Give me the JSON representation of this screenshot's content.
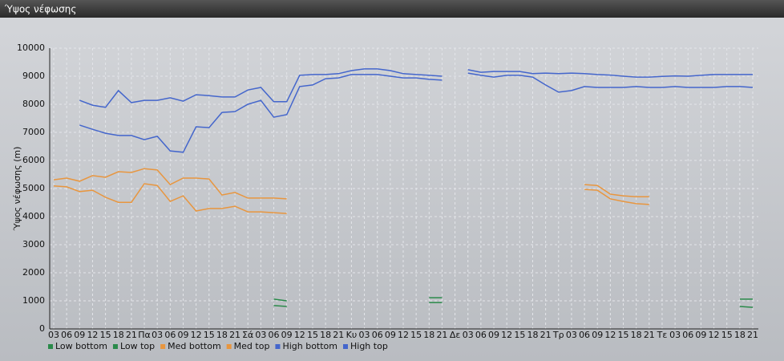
{
  "chart_data": {
    "type": "line",
    "title": "Ύψος νέφωσης",
    "y_label": "Ύψος νέφωσης (m)",
    "categories": [
      "03",
      "06",
      "09",
      "12",
      "15",
      "18",
      "21",
      "Πα",
      "03",
      "06",
      "09",
      "12",
      "15",
      "18",
      "21",
      "Σά",
      "03",
      "06",
      "09",
      "12",
      "15",
      "18",
      "21",
      "Κυ",
      "03",
      "06",
      "09",
      "12",
      "15",
      "18",
      "21",
      "Δε",
      "03",
      "06",
      "09",
      "12",
      "15",
      "18",
      "21",
      "Τρ",
      "03",
      "06",
      "09",
      "12",
      "15",
      "18",
      "21",
      "Τε",
      "03",
      "06",
      "09",
      "12",
      "15",
      "18",
      "21"
    ],
    "ylim": [
      0,
      10000
    ],
    "yticks": [
      0,
      1000,
      2000,
      3000,
      4000,
      5000,
      6000,
      7000,
      8000,
      9000,
      10000
    ],
    "grid": true,
    "series": [
      {
        "name": "Low bottom",
        "color": "#2a8a4a",
        "values": [
          null,
          null,
          null,
          null,
          null,
          null,
          null,
          null,
          null,
          null,
          null,
          null,
          null,
          null,
          null,
          null,
          null,
          830,
          800,
          null,
          null,
          null,
          null,
          null,
          null,
          null,
          null,
          null,
          null,
          940,
          940,
          null,
          null,
          null,
          null,
          null,
          null,
          null,
          null,
          null,
          null,
          null,
          null,
          null,
          null,
          null,
          null,
          null,
          null,
          null,
          null,
          null,
          null,
          800,
          770
        ]
      },
      {
        "name": "Low top",
        "color": "#2a8a4a",
        "values": [
          null,
          null,
          null,
          null,
          null,
          null,
          null,
          null,
          null,
          null,
          null,
          null,
          null,
          null,
          null,
          null,
          null,
          1060,
          1000,
          null,
          null,
          null,
          null,
          null,
          null,
          null,
          null,
          null,
          null,
          1110,
          1110,
          null,
          null,
          null,
          null,
          null,
          null,
          null,
          null,
          null,
          null,
          null,
          null,
          null,
          null,
          null,
          null,
          null,
          null,
          null,
          null,
          null,
          null,
          1060,
          1060
        ]
      },
      {
        "name": "Med bottom",
        "color": "#e8963f",
        "values": [
          5090,
          5060,
          4890,
          4940,
          4690,
          4510,
          4510,
          5170,
          5110,
          4540,
          4740,
          4200,
          4290,
          4290,
          4370,
          4170,
          4170,
          4140,
          4110,
          null,
          null,
          null,
          null,
          null,
          null,
          null,
          null,
          null,
          null,
          null,
          null,
          null,
          null,
          null,
          null,
          null,
          null,
          null,
          null,
          null,
          null,
          4970,
          4940,
          4630,
          4540,
          4460,
          4430,
          null,
          null,
          null,
          null,
          null,
          null,
          null,
          null
        ]
      },
      {
        "name": "Med top",
        "color": "#e8963f",
        "values": [
          5310,
          5370,
          5260,
          5460,
          5400,
          5600,
          5570,
          5710,
          5660,
          5140,
          5370,
          5370,
          5340,
          4770,
          4860,
          4660,
          4660,
          4660,
          4630,
          null,
          null,
          null,
          null,
          null,
          null,
          null,
          null,
          null,
          null,
          null,
          null,
          null,
          null,
          null,
          null,
          null,
          null,
          null,
          null,
          null,
          null,
          5140,
          5110,
          4800,
          4740,
          4710,
          4710,
          null,
          null,
          null,
          null,
          null,
          null,
          null,
          null
        ]
      },
      {
        "name": "High bottom",
        "color": "#4466cc",
        "values": [
          null,
          null,
          7260,
          7110,
          6970,
          6890,
          6890,
          6740,
          6860,
          6340,
          6290,
          7200,
          7170,
          7710,
          7740,
          8000,
          8140,
          7540,
          7630,
          8630,
          8690,
          8910,
          8940,
          9060,
          9060,
          9060,
          9000,
          8940,
          8940,
          8890,
          8860,
          null,
          9110,
          9030,
          8970,
          9030,
          9030,
          8970,
          8690,
          8430,
          8490,
          8630,
          8600,
          8600,
          8600,
          8630,
          8600,
          8600,
          8630,
          8600,
          8600,
          8600,
          8630,
          8630,
          8600
        ]
      },
      {
        "name": "High top",
        "color": "#4466cc",
        "values": [
          null,
          null,
          8140,
          7970,
          7890,
          8490,
          8060,
          8140,
          8140,
          8230,
          8110,
          8340,
          8310,
          8260,
          8260,
          8510,
          8600,
          8090,
          8090,
          9030,
          9060,
          9060,
          9090,
          9200,
          9260,
          9260,
          9200,
          9090,
          9060,
          9030,
          9000,
          null,
          9230,
          9140,
          9170,
          9170,
          9170,
          9090,
          9110,
          9090,
          9110,
          9090,
          9060,
          9040,
          9000,
          8970,
          8970,
          8990,
          9010,
          9000,
          9030,
          9060,
          9060,
          9060,
          9060
        ]
      }
    ]
  }
}
